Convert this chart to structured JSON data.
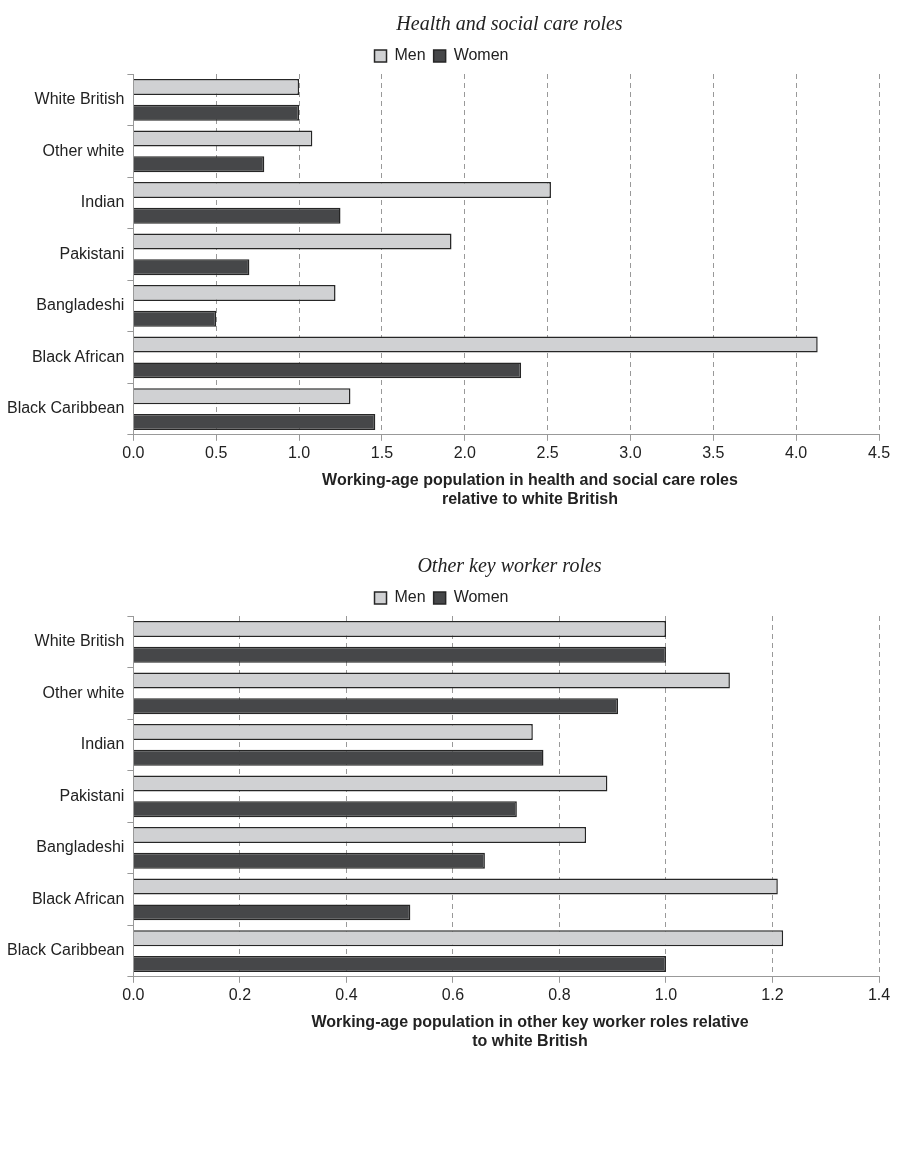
{
  "chart_data": [
    {
      "type": "bar",
      "orientation": "horizontal",
      "title": "Health and social care roles",
      "xlabel": "Working-age population in health and social care roles relative to white British",
      "categories": [
        "White British",
        "Other white",
        "Indian",
        "Pakistani",
        "Bangladeshi",
        "Black African",
        "Black Caribbean"
      ],
      "series": [
        {
          "name": "Men",
          "color": "#d0d1d3",
          "values": [
            1.0,
            1.08,
            2.52,
            1.92,
            1.22,
            4.13,
            1.31
          ]
        },
        {
          "name": "Women",
          "color": "#464749",
          "values": [
            1.0,
            0.79,
            1.25,
            0.7,
            0.5,
            2.34,
            1.46
          ]
        }
      ],
      "xlim": [
        0,
        4.5
      ],
      "xticks": [
        {
          "value": 0,
          "label": "0.0"
        },
        0.5,
        {
          "value": 1,
          "label": "1.0"
        },
        1.5,
        {
          "value": 2,
          "label": "2.0"
        },
        2.5,
        {
          "value": 3,
          "label": "3.0"
        },
        3.5,
        {
          "value": 4,
          "label": "4.0"
        },
        4.5
      ],
      "grid": "x",
      "legend": "top"
    },
    {
      "type": "bar",
      "orientation": "horizontal",
      "title": "Other key worker roles",
      "xlabel": "Working-age population in other key worker roles relative to white British",
      "categories": [
        "White British",
        "Other white",
        "Indian",
        "Pakistani",
        "Bangladeshi",
        "Black African",
        "Black Caribbean"
      ],
      "series": [
        {
          "name": "Men",
          "color": "#d0d1d3",
          "values": [
            1.0,
            1.12,
            0.75,
            0.89,
            0.85,
            1.21,
            1.22
          ]
        },
        {
          "name": "Women",
          "color": "#464749",
          "values": [
            1.0,
            0.91,
            0.77,
            0.72,
            0.66,
            0.52,
            1.0
          ]
        }
      ],
      "xlim": [
        0,
        1.4
      ],
      "xticks": [
        {
          "value": 0,
          "label": "0.0"
        },
        0.2,
        0.4,
        0.6,
        0.8,
        {
          "value": 1,
          "label": "1.0"
        },
        1.2,
        1.4
      ],
      "grid": "x",
      "legend": "top"
    }
  ]
}
